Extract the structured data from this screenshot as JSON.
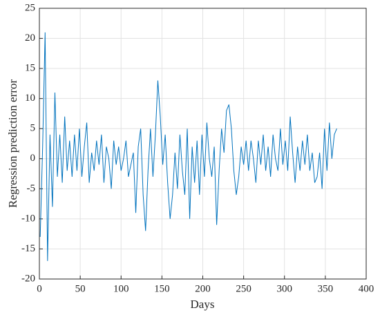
{
  "chart_data": {
    "type": "line",
    "xlabel": "Days",
    "ylabel": "Regression prediction error",
    "x": [
      1,
      4,
      7,
      10,
      13,
      16,
      19,
      22,
      25,
      28,
      31,
      34,
      37,
      40,
      43,
      46,
      49,
      52,
      55,
      58,
      61,
      64,
      67,
      70,
      73,
      76,
      79,
      82,
      85,
      88,
      91,
      94,
      97,
      100,
      103,
      106,
      109,
      112,
      115,
      118,
      121,
      124,
      127,
      130,
      133,
      136,
      139,
      142,
      145,
      148,
      151,
      154,
      157,
      160,
      163,
      166,
      169,
      172,
      175,
      178,
      181,
      184,
      187,
      190,
      193,
      196,
      199,
      202,
      205,
      208,
      211,
      214,
      217,
      220,
      223,
      226,
      229,
      232,
      235,
      238,
      241,
      244,
      247,
      250,
      253,
      256,
      259,
      262,
      265,
      268,
      271,
      274,
      277,
      280,
      283,
      286,
      289,
      292,
      295,
      298,
      301,
      304,
      307,
      310,
      313,
      316,
      319,
      322,
      325,
      328,
      331,
      334,
      337,
      340,
      343,
      346,
      349,
      352,
      355,
      358,
      361,
      364
    ],
    "series": [
      {
        "color": "#0072bd",
        "values": [
          -13,
          2,
          21,
          -17,
          4,
          -8,
          11,
          -3,
          4,
          -4,
          7,
          -2,
          3,
          -3,
          4,
          -2,
          5,
          -3,
          2,
          6,
          -4,
          1,
          -2,
          3,
          -1,
          4,
          -4,
          2,
          0,
          -5,
          3,
          -1,
          2,
          -2,
          0,
          3,
          -3,
          -1,
          1,
          -9,
          2,
          5,
          -6,
          -12,
          -2,
          5,
          -3,
          4,
          13,
          7,
          -1,
          4,
          -4,
          -10,
          -6,
          1,
          -5,
          4,
          -2,
          -6,
          5,
          -10,
          2,
          -4,
          3,
          -6,
          4,
          -3,
          6,
          0,
          -3,
          2,
          -11,
          -2,
          5,
          1,
          8,
          9,
          5,
          -2,
          -6,
          -3,
          2,
          -1,
          3,
          -2,
          3,
          0,
          -4,
          3,
          -1,
          4,
          -2,
          2,
          -3,
          4,
          0,
          -2,
          5,
          -1,
          3,
          -2,
          7,
          1,
          -4,
          2,
          -2,
          3,
          -1,
          4,
          -2,
          1,
          -4,
          -3,
          1,
          -5,
          5,
          -2,
          6,
          0,
          4,
          5
        ]
      }
    ],
    "xlim": [
      0,
      400
    ],
    "xticks": [
      0,
      50,
      100,
      150,
      200,
      250,
      300,
      350,
      400
    ],
    "ylim": [
      -20,
      25
    ],
    "yticks": [
      -20,
      -15,
      -10,
      -5,
      0,
      5,
      10,
      15,
      20,
      25
    ],
    "grid": true
  }
}
